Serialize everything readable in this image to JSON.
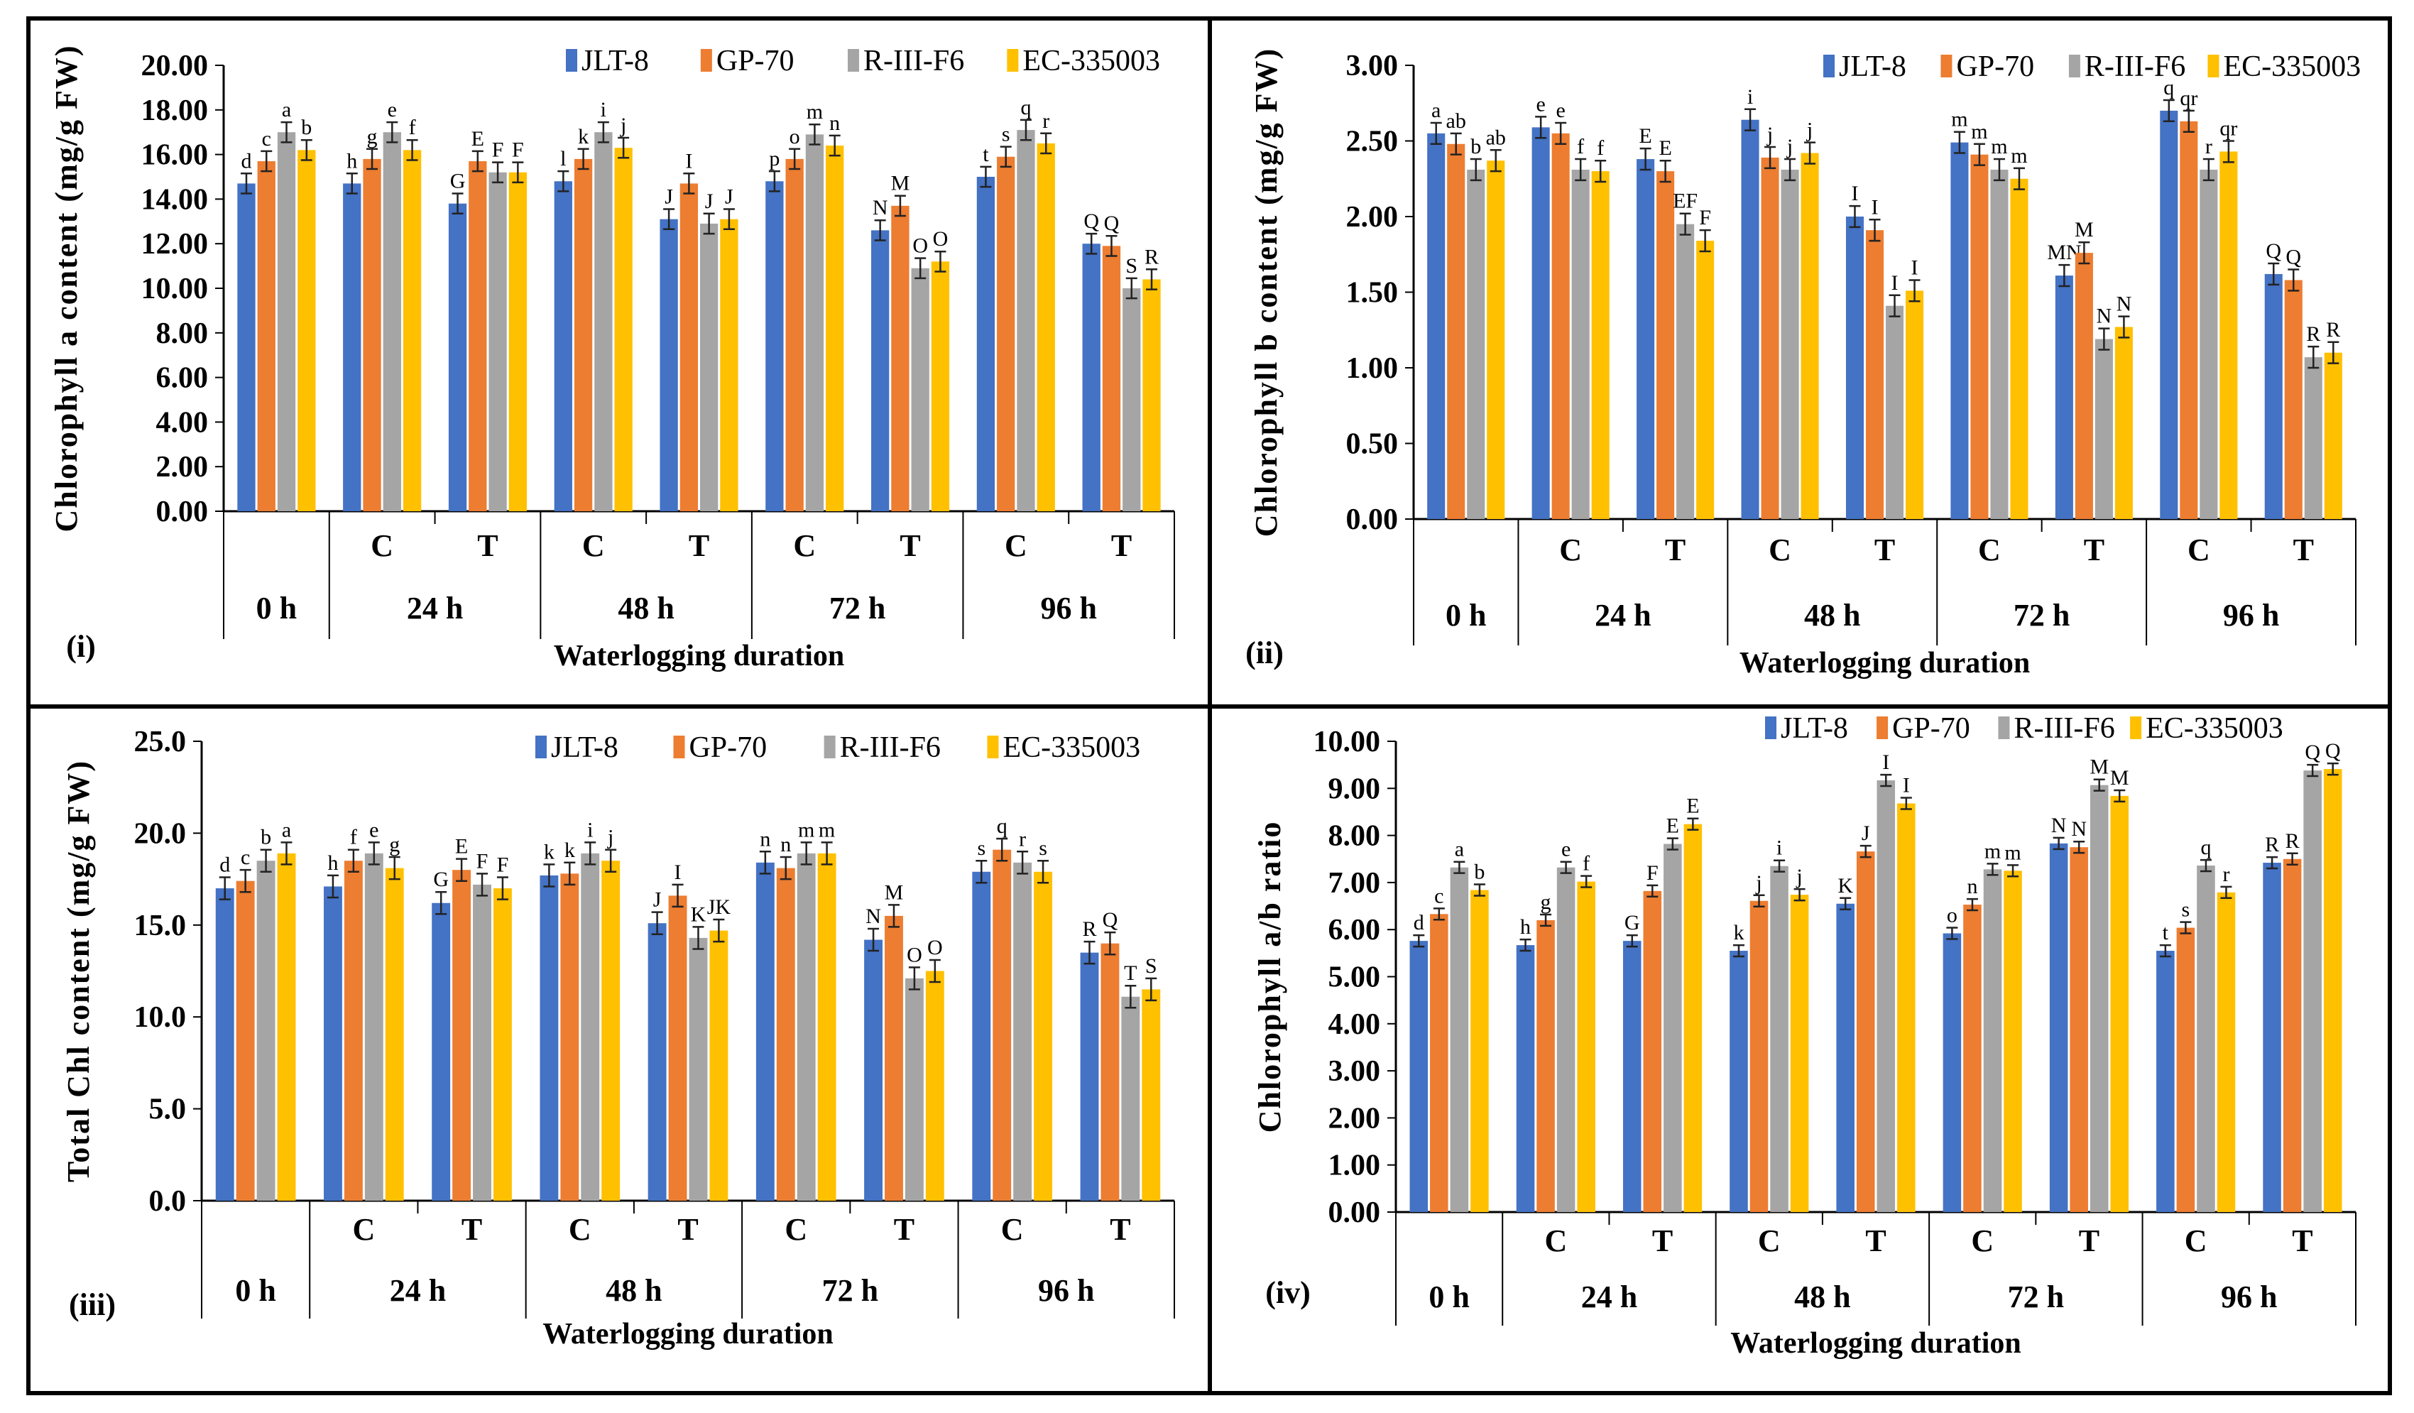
{
  "colors": {
    "JLT-8": "#4472C4",
    "GP-70": "#ED7D31",
    "R-III-F6": "#A5A5A5",
    "EC-335003": "#FFC000"
  },
  "chart_data": [
    {
      "panel_label": "(i)",
      "type": "bar",
      "ylabel": "Chlorophyll a content (mg/g FW)",
      "xlabel": "Waterlogging duration",
      "ylim": [
        0,
        20
      ],
      "ystep": 2,
      "ydecimals": 2,
      "treatments": [
        "",
        "C",
        "T",
        "C",
        "T",
        "C",
        "T",
        "C",
        "T"
      ],
      "durations": [
        "0 h",
        "24 h",
        "48 h",
        "72 h",
        "96 h"
      ],
      "error_bar": 0.45,
      "series": [
        {
          "name": "JLT-8",
          "values": [
            14.7,
            14.7,
            13.8,
            14.8,
            13.1,
            14.8,
            12.6,
            15.0,
            12.0
          ],
          "letters": [
            "d",
            "h",
            "G",
            "l",
            "J",
            "p",
            "N",
            "t",
            "Q"
          ]
        },
        {
          "name": "GP-70",
          "values": [
            15.7,
            15.8,
            15.7,
            15.8,
            14.7,
            15.8,
            13.7,
            15.9,
            11.9
          ],
          "letters": [
            "c",
            "g",
            "E",
            "k",
            "I",
            "o",
            "M",
            "s",
            "Q"
          ]
        },
        {
          "name": "R-III-F6",
          "values": [
            17.0,
            17.0,
            15.2,
            17.0,
            12.9,
            16.9,
            10.9,
            17.1,
            10.0
          ],
          "letters": [
            "a",
            "e",
            "F",
            "i",
            "J",
            "m",
            "O",
            "q",
            "S"
          ]
        },
        {
          "name": "EC-335003",
          "values": [
            16.2,
            16.2,
            15.2,
            16.3,
            13.1,
            16.4,
            11.2,
            16.5,
            10.4
          ],
          "letters": [
            "b",
            "f",
            "F",
            "j",
            "J",
            "n",
            "O",
            "r",
            "R"
          ]
        }
      ]
    },
    {
      "panel_label": "(ii)",
      "type": "bar",
      "ylabel": "Chlorophyll b content (mg/g FW)",
      "xlabel": "Waterlogging duration",
      "ylim": [
        0,
        3
      ],
      "ystep": 0.5,
      "ydecimals": 2,
      "treatments": [
        "",
        "C",
        "T",
        "C",
        "T",
        "C",
        "T",
        "C",
        "T"
      ],
      "durations": [
        "0 h",
        "24 h",
        "48 h",
        "72 h",
        "96 h"
      ],
      "error_bar": 0.07,
      "series": [
        {
          "name": "JLT-8",
          "values": [
            2.55,
            2.59,
            2.38,
            2.64,
            2.0,
            2.49,
            1.61,
            2.7,
            1.62
          ],
          "letters": [
            "a",
            "e",
            "E",
            "i",
            "I",
            "m",
            "MN",
            "q",
            "Q"
          ]
        },
        {
          "name": "GP-70",
          "values": [
            2.48,
            2.55,
            2.3,
            2.39,
            1.91,
            2.41,
            1.76,
            2.63,
            1.58
          ],
          "letters": [
            "ab",
            "e",
            "E",
            "j",
            "I",
            "m",
            "M",
            "qr",
            "Q"
          ]
        },
        {
          "name": "R-III-F6",
          "values": [
            2.31,
            2.31,
            1.95,
            2.31,
            1.41,
            2.31,
            1.19,
            2.31,
            1.07
          ],
          "letters": [
            "b",
            "f",
            "EF",
            "j",
            "I",
            "m",
            "N",
            "r",
            "R"
          ]
        },
        {
          "name": "EC-335003",
          "values": [
            2.37,
            2.3,
            1.84,
            2.42,
            1.51,
            2.25,
            1.27,
            2.43,
            1.1
          ],
          "letters": [
            "ab",
            "f",
            "F",
            "j",
            "I",
            "m",
            "N",
            "qr",
            "R"
          ]
        }
      ]
    },
    {
      "panel_label": "(iii)",
      "type": "bar",
      "ylabel": "Total Chl content (mg/g FW)",
      "xlabel": "Waterlogging duration",
      "ylim": [
        0,
        25
      ],
      "ystep": 5,
      "ydecimals": 1,
      "treatments": [
        "",
        "C",
        "T",
        "C",
        "T",
        "C",
        "T",
        "C",
        "T"
      ],
      "durations": [
        "0 h",
        "24 h",
        "48 h",
        "72 h",
        "96 h"
      ],
      "error_bar": 0.6,
      "series": [
        {
          "name": "JLT-8",
          "values": [
            17.0,
            17.1,
            16.2,
            17.7,
            15.1,
            18.4,
            14.2,
            17.9,
            13.5
          ],
          "letters": [
            "d",
            "h",
            "G",
            "k",
            "J",
            "n",
            "N",
            "s",
            "R"
          ]
        },
        {
          "name": "GP-70",
          "values": [
            17.4,
            18.5,
            18.0,
            17.8,
            16.6,
            18.1,
            15.5,
            19.1,
            14.0
          ],
          "letters": [
            "c",
            "f",
            "E",
            "k",
            "I",
            "n",
            "M",
            "q",
            "Q"
          ]
        },
        {
          "name": "R-III-F6",
          "values": [
            18.5,
            18.9,
            17.2,
            18.9,
            14.3,
            18.9,
            12.1,
            18.4,
            11.1
          ],
          "letters": [
            "b",
            "e",
            "F",
            "i",
            "K",
            "m",
            "O",
            "r",
            "T"
          ]
        },
        {
          "name": "EC-335003",
          "values": [
            18.9,
            18.1,
            17.0,
            18.5,
            14.7,
            18.9,
            12.5,
            17.9,
            11.5
          ],
          "letters": [
            "a",
            "g",
            "F",
            "j",
            "JK",
            "m",
            "O",
            "s",
            "S"
          ]
        }
      ]
    },
    {
      "panel_label": "(iv)",
      "type": "bar",
      "ylabel": "Chlorophyll a/b ratio",
      "xlabel": "Waterlogging duration",
      "ylim": [
        0,
        10
      ],
      "ystep": 1,
      "ydecimals": 2,
      "treatments": [
        "",
        "C",
        "T",
        "C",
        "T",
        "C",
        "T",
        "C",
        "T"
      ],
      "durations": [
        "0 h",
        "24 h",
        "48 h",
        "72 h",
        "96 h"
      ],
      "error_bar": 0.12,
      "series": [
        {
          "name": "JLT-8",
          "values": [
            5.76,
            5.67,
            5.76,
            5.55,
            6.55,
            5.92,
            7.83,
            5.55,
            7.42
          ],
          "letters": [
            "d",
            "h",
            "G",
            "k",
            "K",
            "o",
            "N",
            "t",
            "R"
          ]
        },
        {
          "name": "GP-70",
          "values": [
            6.33,
            6.2,
            6.82,
            6.61,
            7.66,
            6.53,
            7.75,
            6.04,
            7.5
          ],
          "letters": [
            "c",
            "g",
            "F",
            "j",
            "J",
            "n",
            "N",
            "s",
            "R"
          ]
        },
        {
          "name": "R-III-F6",
          "values": [
            7.32,
            7.32,
            7.82,
            7.35,
            9.17,
            7.28,
            9.07,
            7.36,
            9.38
          ],
          "letters": [
            "a",
            "e",
            "E",
            "i",
            "I",
            "m",
            "M",
            "q",
            "Q"
          ]
        },
        {
          "name": "EC-335003",
          "values": [
            6.84,
            7.02,
            8.24,
            6.74,
            8.68,
            7.25,
            8.84,
            6.79,
            9.41
          ],
          "letters": [
            "b",
            "f",
            "E",
            "j",
            "I",
            "m",
            "M",
            "r",
            "Q"
          ]
        }
      ]
    }
  ]
}
